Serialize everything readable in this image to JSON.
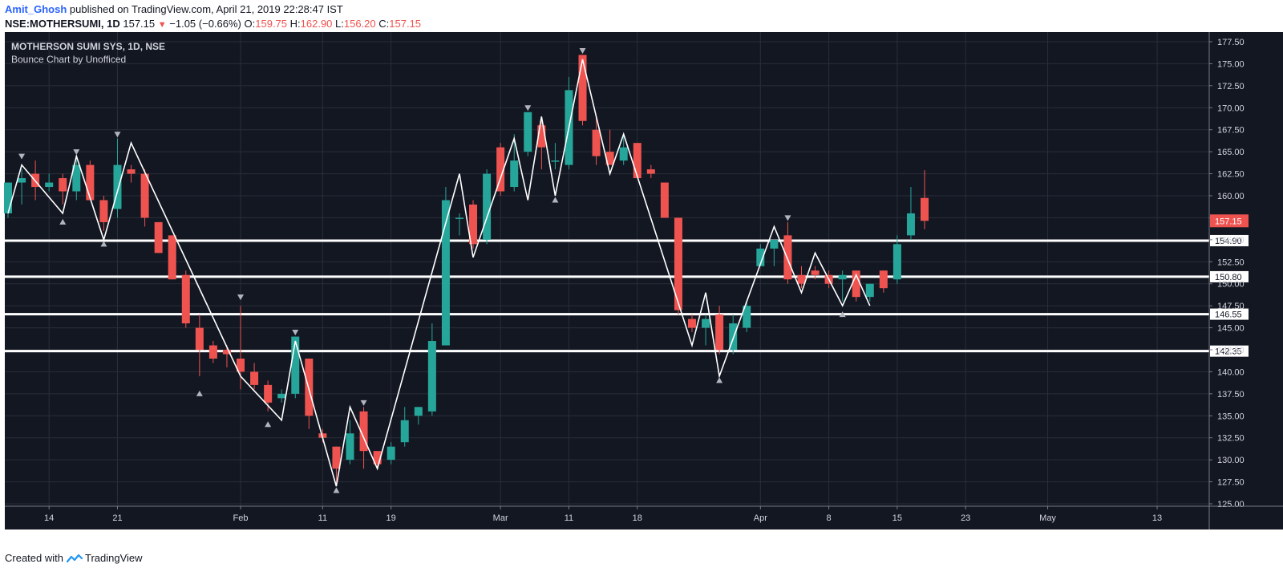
{
  "header": {
    "author": "Amit_Ghosh",
    "published": "published on TradingView.com, April 21, 2019 22:28:47 IST",
    "symbol": "NSE:MOTHERSUMI, 1D",
    "last": "157.15",
    "change": "−1.05 (−0.66%)",
    "o_label": "O:",
    "o_val": "159.75",
    "h_label": "H:",
    "h_val": "162.90",
    "l_label": "L:",
    "l_val": "156.20",
    "c_label": "C:",
    "c_val": "157.15"
  },
  "chart_title": "MOTHERSON SUMI SYS, 1D, NSE",
  "chart_subtitle": "Bounce Chart by Unofficed",
  "footer": {
    "created_with": "Created with",
    "brand": "TradingView"
  },
  "colors": {
    "background": "#131722",
    "grid": "#2a2e39",
    "up": "#26a69a",
    "down": "#ef5350",
    "axis_text": "#d1d4dc",
    "zigzag": "#ffffff",
    "last_price_bg": "#ef5350"
  },
  "chart_data": {
    "type": "candlestick",
    "title": "MOTHERSON SUMI SYS, 1D, NSE",
    "subtitle": "Bounce Chart by Unofficed",
    "ylim": [
      125.0,
      177.5
    ],
    "y_ticks": [
      "125.00",
      "127.50",
      "130.00",
      "132.50",
      "135.00",
      "137.50",
      "140.00",
      "142.50",
      "145.00",
      "147.50",
      "150.00",
      "152.50",
      "155.00",
      "157.50",
      "160.00",
      "162.50",
      "165.00",
      "167.50",
      "170.00",
      "172.50",
      "175.00",
      "177.50"
    ],
    "x_labels": [
      {
        "label": "14",
        "i": 3
      },
      {
        "label": "21",
        "i": 8
      },
      {
        "label": "Feb",
        "i": 17
      },
      {
        "label": "11",
        "i": 23
      },
      {
        "label": "19",
        "i": 28
      },
      {
        "label": "Mar",
        "i": 36
      },
      {
        "label": "11",
        "i": 41
      },
      {
        "label": "18",
        "i": 46
      },
      {
        "label": "Apr",
        "i": 55
      },
      {
        "label": "8",
        "i": 60
      },
      {
        "label": "15",
        "i": 65
      },
      {
        "label": "23",
        "i": 70
      },
      {
        "label": "May",
        "i": 76
      },
      {
        "label": "13",
        "i": 84
      }
    ],
    "candles": [
      {
        "o": 158.0,
        "h": 161.5,
        "l": 157.5,
        "c": 161.5
      },
      {
        "o": 161.5,
        "h": 163.0,
        "l": 159.0,
        "c": 162.0
      },
      {
        "o": 162.5,
        "h": 164.0,
        "l": 159.5,
        "c": 161.0
      },
      {
        "o": 161.0,
        "h": 162.5,
        "l": 160.5,
        "c": 161.5
      },
      {
        "o": 162.0,
        "h": 162.5,
        "l": 159.0,
        "c": 160.5
      },
      {
        "o": 160.5,
        "h": 164.5,
        "l": 159.5,
        "c": 163.5
      },
      {
        "o": 163.5,
        "h": 164.0,
        "l": 159.5,
        "c": 159.5
      },
      {
        "o": 159.5,
        "h": 160.0,
        "l": 156.0,
        "c": 157.0
      },
      {
        "o": 158.5,
        "h": 166.5,
        "l": 157.5,
        "c": 163.5
      },
      {
        "o": 163.0,
        "h": 163.5,
        "l": 161.5,
        "c": 162.5
      },
      {
        "o": 162.5,
        "h": 163.0,
        "l": 156.5,
        "c": 157.5
      },
      {
        "o": 157.0,
        "h": 157.0,
        "l": 153.5,
        "c": 153.5
      },
      {
        "o": 155.5,
        "h": 155.5,
        "l": 150.5,
        "c": 150.5
      },
      {
        "o": 151.0,
        "h": 151.5,
        "l": 145.0,
        "c": 145.5
      },
      {
        "o": 145.0,
        "h": 146.5,
        "l": 139.5,
        "c": 142.5
      },
      {
        "o": 143.0,
        "h": 143.5,
        "l": 141.0,
        "c": 141.5
      },
      {
        "o": 142.5,
        "h": 143.0,
        "l": 140.5,
        "c": 142.0
      },
      {
        "o": 141.5,
        "h": 147.5,
        "l": 138.0,
        "c": 140.0
      },
      {
        "o": 140.0,
        "h": 141.0,
        "l": 138.0,
        "c": 138.5
      },
      {
        "o": 138.5,
        "h": 139.0,
        "l": 135.5,
        "c": 136.5
      },
      {
        "o": 137.0,
        "h": 138.0,
        "l": 136.5,
        "c": 137.5
      },
      {
        "o": 137.5,
        "h": 144.0,
        "l": 137.0,
        "c": 144.0
      },
      {
        "o": 141.5,
        "h": 141.5,
        "l": 133.5,
        "c": 135.0
      },
      {
        "o": 133.0,
        "h": 133.5,
        "l": 132.0,
        "c": 132.5
      },
      {
        "o": 131.5,
        "h": 131.5,
        "l": 127.0,
        "c": 129.0
      },
      {
        "o": 130.0,
        "h": 134.5,
        "l": 129.5,
        "c": 133.0
      },
      {
        "o": 135.5,
        "h": 136.0,
        "l": 129.0,
        "c": 131.0
      },
      {
        "o": 131.0,
        "h": 131.0,
        "l": 129.0,
        "c": 129.5
      },
      {
        "o": 130.0,
        "h": 132.0,
        "l": 129.5,
        "c": 131.5
      },
      {
        "o": 132.0,
        "h": 136.0,
        "l": 131.5,
        "c": 134.5
      },
      {
        "o": 135.0,
        "h": 136.0,
        "l": 134.0,
        "c": 136.0
      },
      {
        "o": 135.5,
        "h": 145.5,
        "l": 135.0,
        "c": 143.5
      },
      {
        "o": 143.0,
        "h": 161.0,
        "l": 143.0,
        "c": 159.5
      },
      {
        "o": 157.5,
        "h": 158.0,
        "l": 155.5,
        "c": 157.5
      },
      {
        "o": 159.0,
        "h": 159.5,
        "l": 154.0,
        "c": 154.5
      },
      {
        "o": 155.0,
        "h": 163.0,
        "l": 154.5,
        "c": 162.5
      },
      {
        "o": 165.5,
        "h": 166.0,
        "l": 160.0,
        "c": 160.5
      },
      {
        "o": 161.0,
        "h": 167.0,
        "l": 160.5,
        "c": 164.0
      },
      {
        "o": 165.0,
        "h": 169.5,
        "l": 164.5,
        "c": 169.5
      },
      {
        "o": 168.0,
        "h": 168.5,
        "l": 163.0,
        "c": 165.5
      },
      {
        "o": 164.0,
        "h": 166.0,
        "l": 163.0,
        "c": 164.0
      },
      {
        "o": 163.5,
        "h": 173.5,
        "l": 163.0,
        "c": 172.0
      },
      {
        "o": 176.0,
        "h": 176.0,
        "l": 168.0,
        "c": 168.5
      },
      {
        "o": 167.5,
        "h": 169.0,
        "l": 163.5,
        "c": 164.5
      },
      {
        "o": 165.0,
        "h": 167.5,
        "l": 163.5,
        "c": 163.5
      },
      {
        "o": 164.0,
        "h": 167.0,
        "l": 163.5,
        "c": 165.5
      },
      {
        "o": 166.0,
        "h": 166.0,
        "l": 162.0,
        "c": 162.0
      },
      {
        "o": 163.0,
        "h": 163.5,
        "l": 162.0,
        "c": 162.5
      },
      {
        "o": 161.5,
        "h": 161.5,
        "l": 157.5,
        "c": 157.5
      },
      {
        "o": 157.5,
        "h": 157.5,
        "l": 146.5,
        "c": 147.0
      },
      {
        "o": 146.0,
        "h": 146.5,
        "l": 144.5,
        "c": 145.0
      },
      {
        "o": 145.0,
        "h": 146.5,
        "l": 143.0,
        "c": 146.0
      },
      {
        "o": 146.5,
        "h": 147.5,
        "l": 142.0,
        "c": 142.5
      },
      {
        "o": 142.5,
        "h": 146.5,
        "l": 142.0,
        "c": 145.5
      },
      {
        "o": 145.0,
        "h": 148.0,
        "l": 144.5,
        "c": 147.5
      },
      {
        "o": 152.0,
        "h": 154.5,
        "l": 152.0,
        "c": 154.0
      },
      {
        "o": 154.0,
        "h": 155.0,
        "l": 152.0,
        "c": 155.0
      },
      {
        "o": 155.5,
        "h": 157.0,
        "l": 150.0,
        "c": 150.5
      },
      {
        "o": 151.0,
        "h": 152.0,
        "l": 149.5,
        "c": 150.0
      },
      {
        "o": 151.5,
        "h": 152.0,
        "l": 150.5,
        "c": 151.0
      },
      {
        "o": 151.0,
        "h": 151.5,
        "l": 149.5,
        "c": 150.0
      },
      {
        "o": 150.5,
        "h": 151.5,
        "l": 148.0,
        "c": 151.0
      },
      {
        "o": 151.5,
        "h": 151.5,
        "l": 148.0,
        "c": 148.5
      },
      {
        "o": 148.5,
        "h": 150.0,
        "l": 148.0,
        "c": 150.0
      },
      {
        "o": 151.5,
        "h": 151.5,
        "l": 149.0,
        "c": 149.5
      },
      {
        "o": 150.5,
        "h": 155.5,
        "l": 150.0,
        "c": 154.5
      },
      {
        "o": 155.5,
        "h": 161.0,
        "l": 155.0,
        "c": 158.0
      },
      {
        "o": 159.75,
        "h": 162.9,
        "l": 156.2,
        "c": 157.15
      }
    ],
    "zigzag": [
      {
        "i": 0,
        "p": 158.0
      },
      {
        "i": 1,
        "p": 163.5
      },
      {
        "i": 4,
        "p": 158.0
      },
      {
        "i": 5,
        "p": 164.5
      },
      {
        "i": 7,
        "p": 155.0
      },
      {
        "i": 9,
        "p": 166.0
      },
      {
        "i": 17,
        "p": 139.5
      },
      {
        "i": 20,
        "p": 134.5
      },
      {
        "i": 21,
        "p": 143.5
      },
      {
        "i": 24,
        "p": 127.0
      },
      {
        "i": 25,
        "p": 136.0
      },
      {
        "i": 27,
        "p": 129.0
      },
      {
        "i": 33,
        "p": 162.5
      },
      {
        "i": 34,
        "p": 153.0
      },
      {
        "i": 37,
        "p": 166.5
      },
      {
        "i": 38,
        "p": 159.5
      },
      {
        "i": 39,
        "p": 169.0
      },
      {
        "i": 40,
        "p": 160.0
      },
      {
        "i": 42,
        "p": 175.5
      },
      {
        "i": 44,
        "p": 162.5
      },
      {
        "i": 45,
        "p": 167.0
      },
      {
        "i": 50,
        "p": 143.0
      },
      {
        "i": 51,
        "p": 149.0
      },
      {
        "i": 52,
        "p": 139.5
      },
      {
        "i": 56,
        "p": 156.5
      },
      {
        "i": 58,
        "p": 149.0
      },
      {
        "i": 59,
        "p": 153.5
      },
      {
        "i": 61,
        "p": 147.5
      },
      {
        "i": 62,
        "p": 151.0
      },
      {
        "i": 63,
        "p": 147.5
      }
    ],
    "pivot_markers": [
      {
        "i": 1,
        "p": 164.5,
        "dir": "down"
      },
      {
        "i": 4,
        "p": 157.0,
        "dir": "up"
      },
      {
        "i": 5,
        "p": 165.0,
        "dir": "down"
      },
      {
        "i": 7,
        "p": 154.5,
        "dir": "up"
      },
      {
        "i": 8,
        "p": 167.0,
        "dir": "down"
      },
      {
        "i": 14,
        "p": 137.5,
        "dir": "up"
      },
      {
        "i": 17,
        "p": 148.5,
        "dir": "down"
      },
      {
        "i": 19,
        "p": 134.0,
        "dir": "up"
      },
      {
        "i": 21,
        "p": 144.5,
        "dir": "down"
      },
      {
        "i": 24,
        "p": 126.5,
        "dir": "up"
      },
      {
        "i": 26,
        "p": 136.5,
        "dir": "down"
      },
      {
        "i": 38,
        "p": 170.0,
        "dir": "down"
      },
      {
        "i": 40,
        "p": 159.5,
        "dir": "up"
      },
      {
        "i": 42,
        "p": 176.5,
        "dir": "down"
      },
      {
        "i": 52,
        "p": 139.0,
        "dir": "up"
      },
      {
        "i": 57,
        "p": 157.5,
        "dir": "down"
      },
      {
        "i": 61,
        "p": 146.5,
        "dir": "up"
      }
    ],
    "levels": [
      154.9,
      150.8,
      146.55,
      142.35
    ],
    "level_labels": [
      "154.90",
      "150.80",
      "146.55",
      "142.35"
    ],
    "last_price": 157.15,
    "last_price_label": "157.15"
  }
}
